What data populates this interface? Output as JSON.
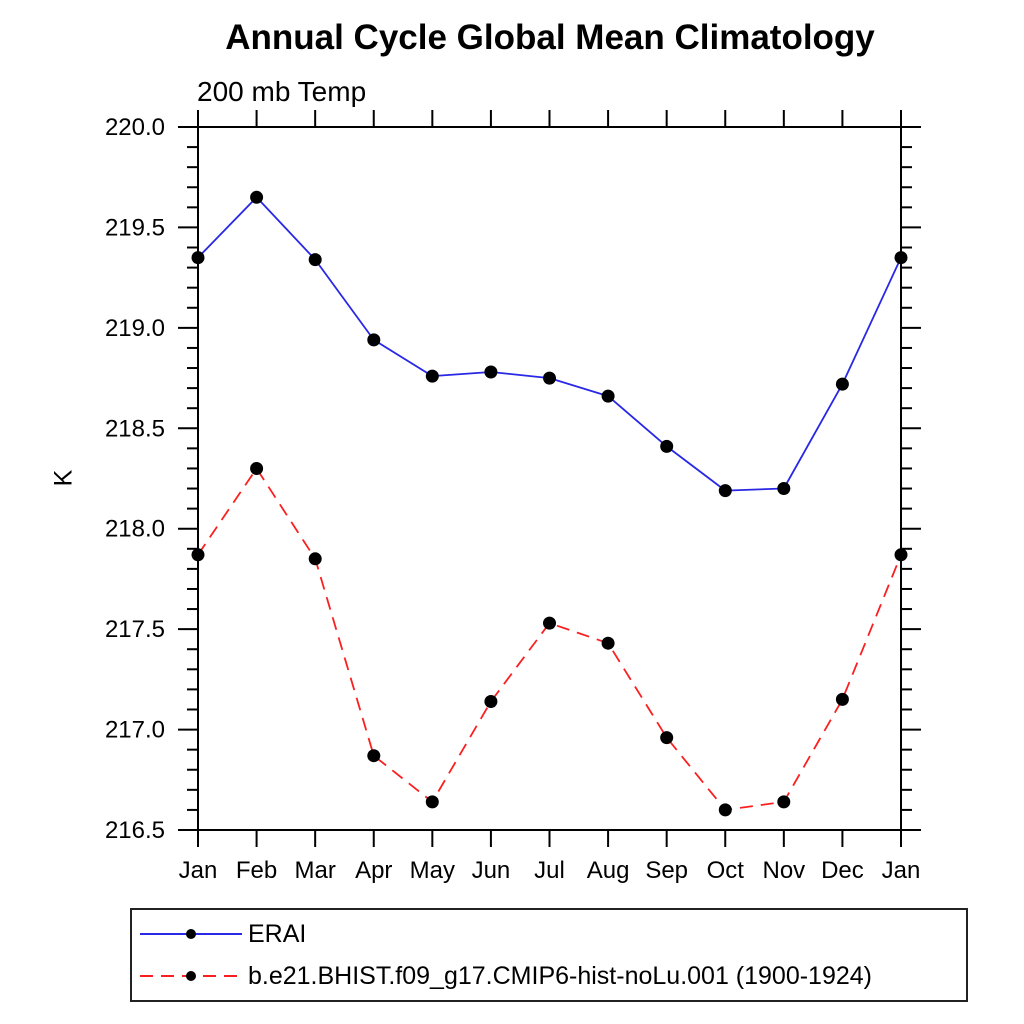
{
  "chart_data": {
    "type": "line",
    "title": "Annual Cycle Global Mean Climatology",
    "subtitle": "200 mb Temp",
    "ylabel": "K",
    "xlabel": "",
    "categories": [
      "Jan",
      "Feb",
      "Mar",
      "Apr",
      "May",
      "Jun",
      "Jul",
      "Aug",
      "Sep",
      "Oct",
      "Nov",
      "Dec",
      "Jan"
    ],
    "series": [
      {
        "name": "ERAI",
        "color": "#2828e6",
        "line_style": "solid",
        "marker": "filled-circle",
        "marker_color": "#000000",
        "values": [
          219.35,
          219.65,
          219.34,
          218.94,
          218.76,
          218.78,
          218.75,
          218.66,
          218.41,
          218.19,
          218.2,
          218.72,
          219.35
        ]
      },
      {
        "name": "b.e21.BHIST.f09_g17.CMIP6-hist-noLu.001 (1900-1924)",
        "color": "#fb2020",
        "line_style": "dashed",
        "marker": "filled-circle",
        "marker_color": "#000000",
        "values": [
          217.87,
          218.3,
          217.85,
          216.87,
          216.64,
          217.14,
          217.53,
          217.43,
          216.96,
          216.6,
          216.64,
          217.15,
          217.87
        ]
      }
    ],
    "ylim": [
      216.5,
      220.0
    ],
    "ytick_major_step": 0.5,
    "ytick_minor_step": 0.1,
    "ytick_labels": [
      "220.0",
      "219.5",
      "219.0",
      "218.5",
      "218.0",
      "217.5",
      "217.0",
      "216.5"
    ],
    "grid": false,
    "legend_position": "bottom-left-outside",
    "axis_color": "#000000",
    "text_color": "#000000"
  }
}
